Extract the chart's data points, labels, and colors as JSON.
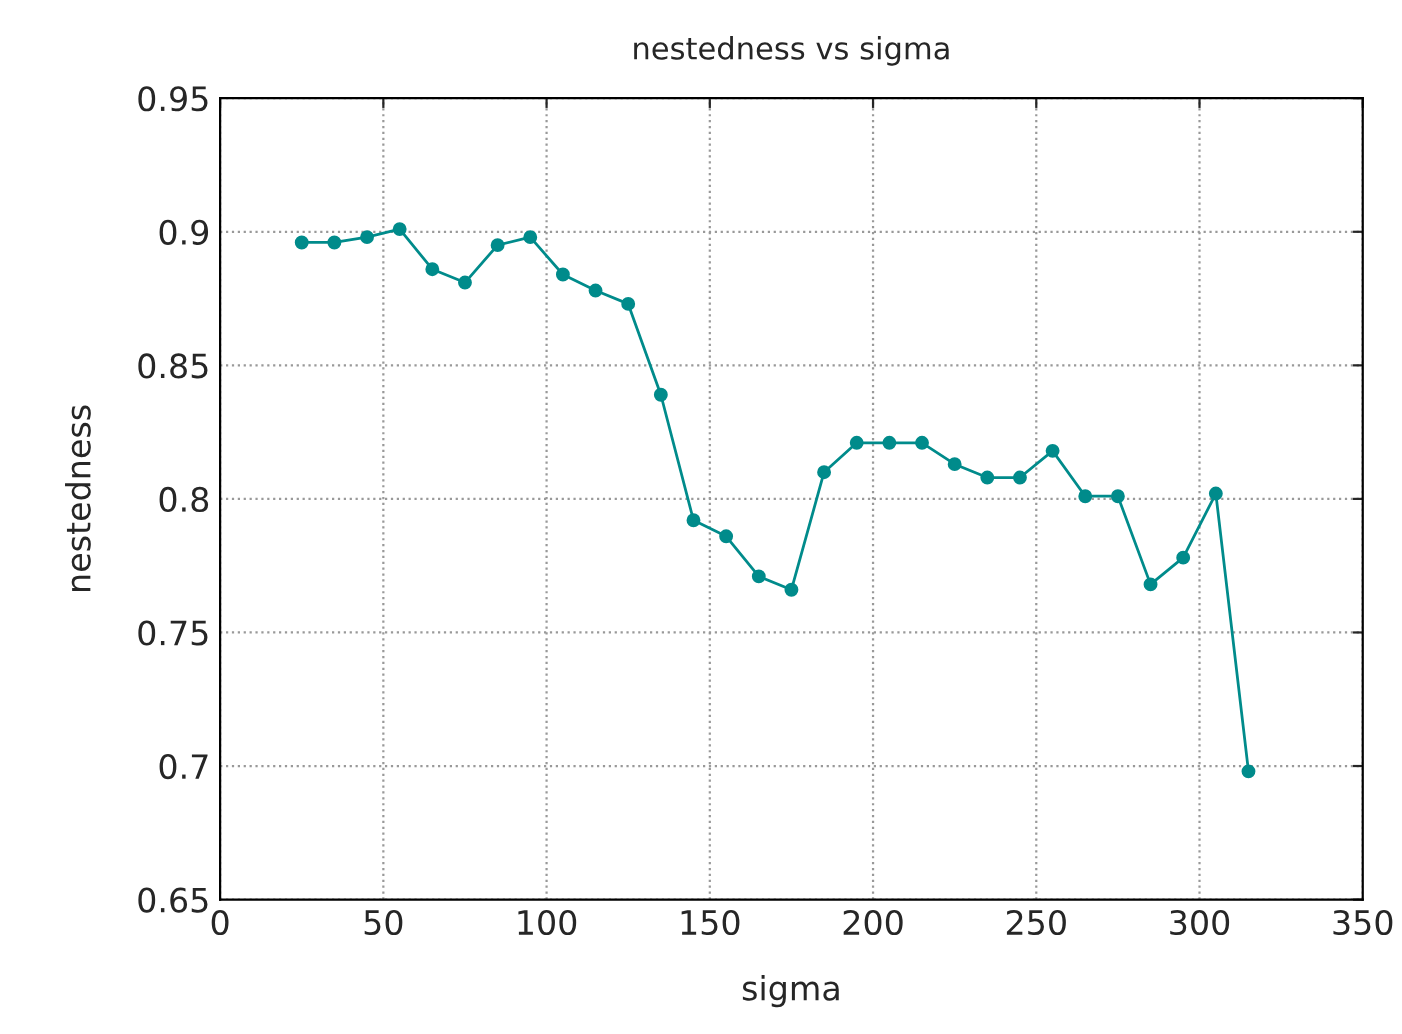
{
  "chart_data": {
    "type": "line",
    "title": "nestedness vs sigma",
    "xlabel": "sigma",
    "ylabel": "nestedness",
    "x": [
      25,
      35,
      45,
      55,
      65,
      75,
      85,
      95,
      105,
      115,
      125,
      135,
      145,
      155,
      165,
      175,
      185,
      195,
      205,
      215,
      225,
      235,
      245,
      255,
      265,
      275,
      285,
      295,
      305,
      315
    ],
    "series": [
      {
        "color": "#008b8b",
        "values": [
          0.896,
          0.896,
          0.898,
          0.901,
          0.886,
          0.881,
          0.895,
          0.898,
          0.884,
          0.878,
          0.873,
          0.839,
          0.792,
          0.786,
          0.771,
          0.766,
          0.81,
          0.821,
          0.821,
          0.821,
          0.813,
          0.808,
          0.808,
          0.818,
          0.801,
          0.801,
          0.768,
          0.778,
          0.802,
          0.698
        ]
      }
    ],
    "xlim": [
      0,
      350
    ],
    "xticks": [
      0,
      50,
      100,
      150,
      200,
      250,
      300,
      350
    ],
    "ylim": [
      0.65,
      0.95
    ],
    "yticks": [
      0.65,
      0.7,
      0.75,
      0.8,
      0.85,
      0.9,
      0.95
    ],
    "grid": true,
    "marker": "circle",
    "line_style": "solid",
    "legend": false
  }
}
